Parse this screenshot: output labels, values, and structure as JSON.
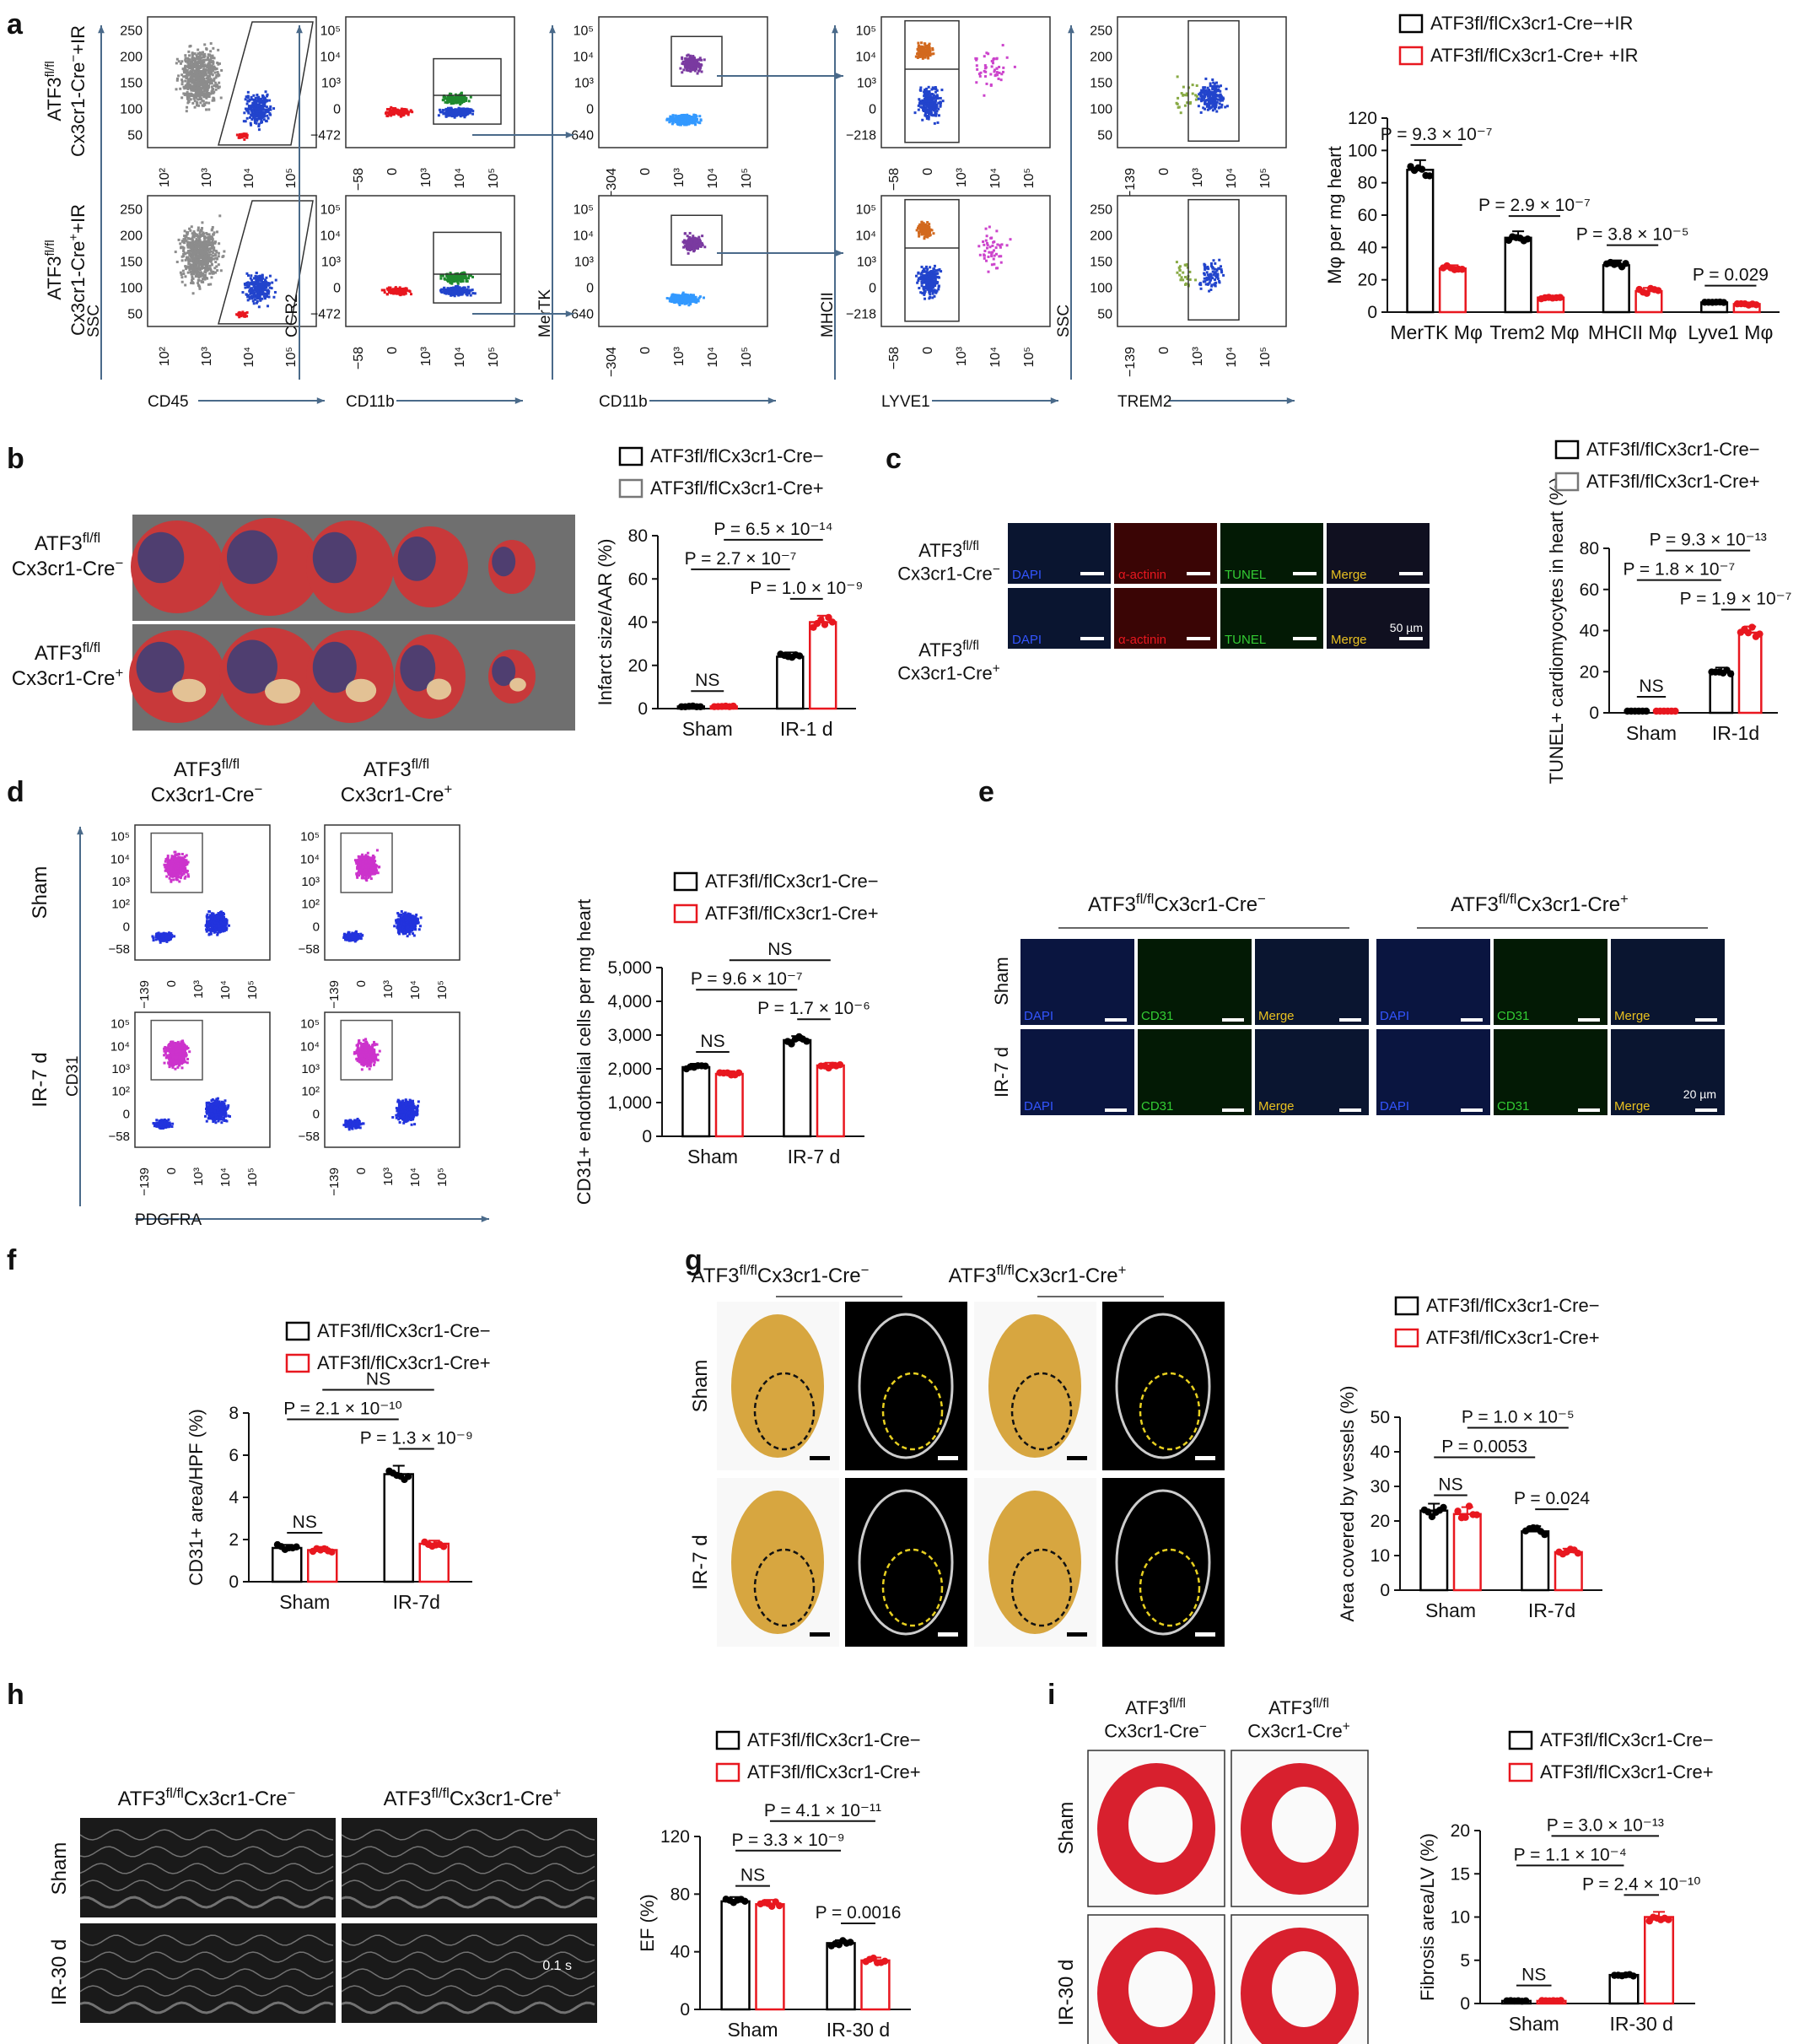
{
  "panel_letters": [
    "a",
    "b",
    "c",
    "d",
    "e",
    "f",
    "g",
    "h",
    "i"
  ],
  "legend": {
    "neg_ir": "ATF3fl/flCx3cr1-Cre−+IR",
    "pos_ir": "ATF3fl/flCx3cr1-Cre+ +IR",
    "neg": "ATF3fl/flCx3cr1-Cre−",
    "pos": "ATF3fl/flCx3cr1-Cre+"
  },
  "row_labels": {
    "a_neg": "ATF3fl/fl Cx3cr1-Cre−+IR",
    "a_pos": "ATF3fl/fl Cx3cr1-Cre+ +IR",
    "geno_neg": "ATF3fl/fl Cx3cr1-Cre−",
    "geno_pos": "ATF3fl/fl Cx3cr1-Cre+",
    "sham": "Sham",
    "ir7": "IR-7 d",
    "ir30": "IR-30 d"
  },
  "flow_axes": {
    "x": [
      "CD45",
      "CD11b",
      "CD11b",
      "LYVE1",
      "TREM2"
    ],
    "y": [
      "SSC",
      "CCR2",
      "MerTK",
      "MHCII",
      "SSC"
    ],
    "d_x": "PDGFRA",
    "d_y": "CD31"
  },
  "image_labels": {
    "dapi": "DAPI",
    "actinin": "α-actinin",
    "tunel": "TUNEL",
    "merge": "Merge",
    "cd31": "CD31",
    "scale_c": "50 µm",
    "scale_e": "20 µm",
    "scale_h": "0.1 s"
  },
  "colors": {
    "cre_neg": "#000000",
    "cre_pos": "#e8171f",
    "arrow": "#4a6a8a"
  },
  "chart_data": [
    {
      "id": "a",
      "type": "bar",
      "categories": [
        "MerTK Mφ",
        "Trem2 Mφ",
        "MHCII Mφ",
        "Lyve1 Mφ"
      ],
      "series": [
        {
          "name": "ATF3fl/flCx3cr1-Cre−+IR",
          "values": [
            88,
            46,
            29,
            6
          ],
          "errors": [
            6,
            4,
            3,
            1
          ]
        },
        {
          "name": "ATF3fl/flCx3cr1-Cre+ +IR",
          "values": [
            27,
            9,
            13,
            5
          ],
          "errors": [
            2,
            1,
            2,
            1
          ]
        }
      ],
      "ylabel": "Mφ per mg heart",
      "ylim": [
        0,
        120
      ],
      "yticks": [
        0,
        20,
        40,
        60,
        80,
        100,
        120
      ],
      "pvalues": [
        "P = 9.3 × 10⁻⁷",
        "P = 2.9 × 10⁻⁷",
        "P = 3.8 × 10⁻⁵",
        "P = 0.029"
      ]
    },
    {
      "id": "b",
      "type": "bar",
      "categories": [
        "Sham",
        "IR-1 d"
      ],
      "series": [
        {
          "name": "ATF3fl/flCx3cr1-Cre−",
          "values": [
            1,
            24
          ],
          "errors": [
            0.3,
            2
          ]
        },
        {
          "name": "ATF3fl/flCx3cr1-Cre+",
          "values": [
            1,
            40
          ],
          "errors": [
            0.3,
            3
          ]
        }
      ],
      "ylabel": "Infarct size/AAR (%)",
      "ylim": [
        0,
        80
      ],
      "yticks": [
        0,
        20,
        40,
        60,
        80
      ],
      "pvalues": [
        "NS",
        "P = 1.0 × 10⁻⁹",
        "P = 2.7 × 10⁻⁷",
        "P = 6.5 × 10⁻¹⁴"
      ]
    },
    {
      "id": "c",
      "type": "bar",
      "categories": [
        "Sham",
        "IR-1d"
      ],
      "series": [
        {
          "name": "ATF3fl/flCx3cr1-Cre−",
          "values": [
            0.5,
            20
          ],
          "errors": [
            0.2,
            2
          ]
        },
        {
          "name": "ATF3fl/flCx3cr1-Cre+",
          "values": [
            0.5,
            39
          ],
          "errors": [
            0.2,
            3
          ]
        }
      ],
      "ylabel": "TUNEL+ cardiomyocytes in heart (%)",
      "ylim": [
        0,
        80
      ],
      "yticks": [
        0,
        20,
        40,
        60,
        80
      ],
      "pvalues": [
        "NS",
        "P = 1.9 × 10⁻⁷",
        "P = 1.8 × 10⁻⁷",
        "P = 9.3 × 10⁻¹³"
      ]
    },
    {
      "id": "d",
      "type": "bar",
      "categories": [
        "Sham",
        "IR-7 d"
      ],
      "series": [
        {
          "name": "ATF3fl/flCx3cr1-Cre−",
          "values": [
            2050,
            2850
          ],
          "errors": [
            100,
            120
          ]
        },
        {
          "name": "ATF3fl/flCx3cr1-Cre+",
          "values": [
            1850,
            2100
          ],
          "errors": [
            80,
            80
          ]
        }
      ],
      "ylabel": "CD31+ endothelial cells per mg heart",
      "ylim": [
        0,
        5000
      ],
      "yticks": [
        0,
        1000,
        2000,
        3000,
        4000,
        5000
      ],
      "ytick_labels": [
        "0",
        "1,000",
        "2,000",
        "3,000",
        "4,000",
        "5,000"
      ],
      "pvalues": [
        "NS",
        "P = 1.7 × 10⁻⁶",
        "P = 9.6 × 10⁻⁷",
        "NS"
      ]
    },
    {
      "id": "f",
      "type": "bar",
      "categories": [
        "Sham",
        "IR-7d"
      ],
      "series": [
        {
          "name": "ATF3fl/flCx3cr1-Cre−",
          "values": [
            1.6,
            5.1
          ],
          "errors": [
            0.15,
            0.4
          ]
        },
        {
          "name": "ATF3fl/flCx3cr1-Cre+",
          "values": [
            1.5,
            1.8
          ],
          "errors": [
            0.15,
            0.15
          ]
        }
      ],
      "ylabel": "CD31+ area/HPF (%)",
      "ylim": [
        0,
        8
      ],
      "yticks": [
        0,
        2,
        4,
        6,
        8
      ],
      "pvalues": [
        "NS",
        "P = 1.3 × 10⁻⁹",
        "P = 2.1 × 10⁻¹⁰",
        "NS"
      ]
    },
    {
      "id": "g",
      "type": "bar",
      "categories": [
        "Sham",
        "IR-7d"
      ],
      "series": [
        {
          "name": "ATF3fl/flCx3cr1-Cre−",
          "values": [
            23,
            17
          ],
          "errors": [
            2,
            1.5
          ]
        },
        {
          "name": "ATF3fl/flCx3cr1-Cre+",
          "values": [
            22,
            11
          ],
          "errors": [
            2,
            1
          ]
        }
      ],
      "ylabel": "Area covered by vessels (%)",
      "ylim": [
        0,
        50
      ],
      "yticks": [
        0,
        10,
        20,
        30,
        40,
        50
      ],
      "pvalues": [
        "NS",
        "P = 0.024",
        "P = 0.0053",
        "P = 1.0 × 10⁻⁵"
      ]
    },
    {
      "id": "h",
      "type": "bar",
      "categories": [
        "Sham",
        "IR-30 d"
      ],
      "series": [
        {
          "name": "ATF3fl/flCx3cr1-Cre−",
          "values": [
            75,
            46
          ],
          "errors": [
            3,
            2
          ]
        },
        {
          "name": "ATF3fl/flCx3cr1-Cre+",
          "values": [
            73,
            34
          ],
          "errors": [
            3,
            2
          ]
        }
      ],
      "ylabel": "EF (%)",
      "ylim": [
        0,
        120
      ],
      "yticks": [
        0,
        40,
        80,
        120
      ],
      "pvalues": [
        "NS",
        "P = 0.0016",
        "P = 3.3 × 10⁻⁹",
        "P = 4.1 × 10⁻¹¹"
      ]
    },
    {
      "id": "i",
      "type": "bar",
      "categories": [
        "Sham",
        "IR-30 d"
      ],
      "series": [
        {
          "name": "ATF3fl/flCx3cr1-Cre−",
          "values": [
            0.3,
            3.3
          ],
          "errors": [
            0.05,
            0.2
          ]
        },
        {
          "name": "ATF3fl/flCx3cr1-Cre+",
          "values": [
            0.3,
            10
          ],
          "errors": [
            0.05,
            0.6
          ]
        }
      ],
      "ylabel": "Fibrosis area/LV (%)",
      "ylim": [
        0,
        20
      ],
      "yticks": [
        0,
        5,
        10,
        15,
        20
      ],
      "pvalues": [
        "NS",
        "P = 2.4 × 10⁻¹⁰",
        "P = 1.1 × 10⁻⁴",
        "P = 3.0 × 10⁻¹³"
      ]
    }
  ]
}
